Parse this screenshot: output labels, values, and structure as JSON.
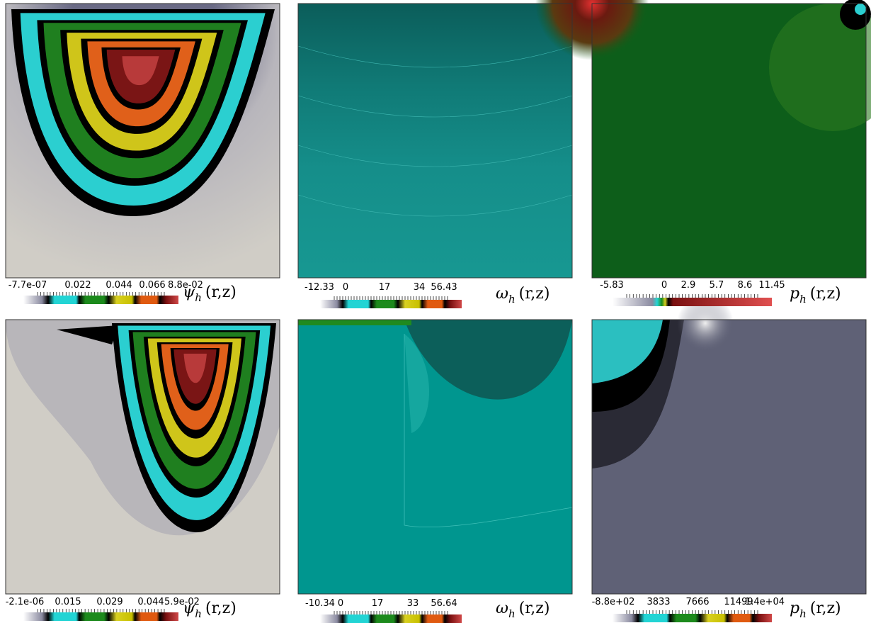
{
  "panels": [
    {
      "ticks": [
        "-7.7e-07",
        "0.022",
        "0.044",
        "0.066",
        "8.8e-02"
      ],
      "label": {
        "symbol": "ψ",
        "sub": "h",
        "args": "(r,z)"
      }
    },
    {
      "ticks": [
        "-12.33",
        "0",
        "17",
        "34",
        "56.43"
      ],
      "label": {
        "symbol": "ω",
        "sub": "h",
        "args": "(r,z)"
      }
    },
    {
      "ticks": [
        "-5.83",
        "0",
        "2.9",
        "5.7",
        "8.6",
        "11.45"
      ],
      "label": {
        "symbol": "p",
        "sub": "h",
        "args": "(r,z)"
      }
    },
    {
      "ticks": [
        "-2.1e-06",
        "0.015",
        "0.029",
        "0.044",
        "5.9e-02"
      ],
      "label": {
        "symbol": "ψ",
        "sub": "h",
        "args": "(r,z)"
      }
    },
    {
      "ticks": [
        "-10.34",
        "0",
        "17",
        "33",
        "56.64"
      ],
      "label": {
        "symbol": "ω",
        "sub": "h",
        "args": "(r,z)"
      }
    },
    {
      "ticks": [
        "-8.8e+02",
        "3833",
        "7666",
        "11499",
        "1.4e+04"
      ],
      "label": {
        "symbol": "p",
        "sub": "h",
        "args": "(r,z)"
      }
    }
  ]
}
